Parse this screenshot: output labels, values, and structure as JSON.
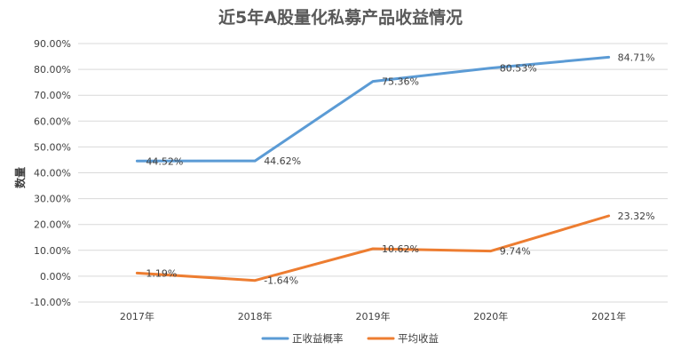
{
  "chart_data": {
    "type": "line",
    "title": "近5年A股量化私募产品收益情况",
    "ylabel": "数量",
    "xlabel": "",
    "categories": [
      "2017年",
      "2018年",
      "2019年",
      "2020年",
      "2021年"
    ],
    "ylim": [
      -0.1,
      0.9
    ],
    "ytick_step": 0.1,
    "ytick_labels": [
      "-10.00%",
      "0.00%",
      "10.00%",
      "20.00%",
      "30.00%",
      "40.00%",
      "50.00%",
      "60.00%",
      "70.00%",
      "80.00%",
      "90.00%"
    ],
    "grid": true,
    "legend_position": "bottom",
    "series": [
      {
        "name": "正收益概率",
        "color": "#5b9bd5",
        "values": [
          0.4452,
          0.4462,
          0.7536,
          0.8053,
          0.8471
        ],
        "labels": [
          "44.52%",
          "44.62%",
          "75.36%",
          "80.53%",
          "84.71%"
        ]
      },
      {
        "name": "平均收益",
        "color": "#ed7d31",
        "values": [
          0.0119,
          -0.0164,
          0.1062,
          0.0974,
          0.2332
        ],
        "labels": [
          "1.19%",
          "-1.64%",
          "10.62%",
          "9.74%",
          "23.32%"
        ]
      }
    ]
  }
}
